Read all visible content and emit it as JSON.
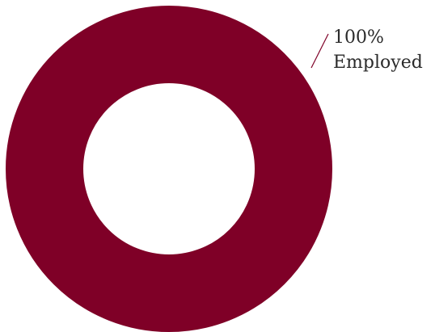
{
  "chart_data": {
    "type": "pie",
    "style": "donut",
    "slices": [
      {
        "label": "Employed",
        "value": 100,
        "value_label": "100%",
        "color": "#7f0027"
      }
    ],
    "leader_line_color": "#7f0027",
    "legend": "none"
  }
}
